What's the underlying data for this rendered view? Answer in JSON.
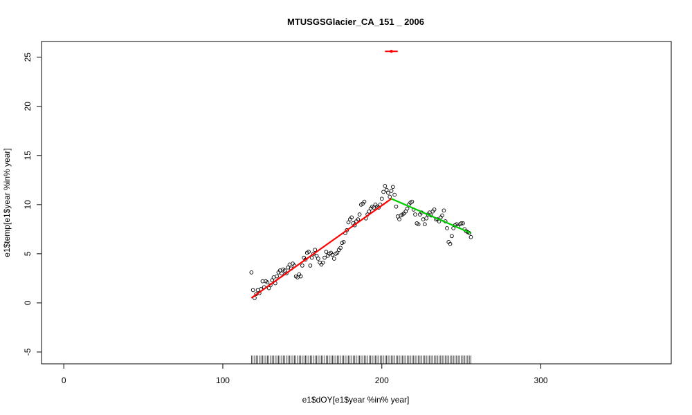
{
  "chart_data": {
    "type": "scatter",
    "title": "MTUSGSGlacier_CA_151 _ 2006",
    "xlabel": "e1$dOY[e1$year %in% year]",
    "ylabel": "e1$temp[e1$year %in% year]",
    "xlim": [
      -14,
      382
    ],
    "ylim": [
      -6.2,
      26.6
    ],
    "x_ticks": [
      0,
      100,
      200,
      300
    ],
    "y_ticks": [
      -5,
      0,
      5,
      10,
      15,
      20,
      25
    ],
    "grid": false,
    "legend": "none",
    "colors": {
      "points": "#000000",
      "fit_before": "#ff0000",
      "fit_after": "#00cc00",
      "marker": "#ff0000"
    },
    "points": {
      "x": [
        118,
        119,
        120,
        121,
        122,
        123,
        124,
        125,
        126,
        127,
        128,
        129,
        130,
        131,
        132,
        133,
        134,
        135,
        136,
        137,
        138,
        139,
        140,
        141,
        142,
        143,
        144,
        145,
        146,
        147,
        148,
        149,
        150,
        151,
        152,
        153,
        154,
        155,
        156,
        157,
        158,
        159,
        160,
        161,
        162,
        163,
        164,
        165,
        166,
        167,
        168,
        169,
        170,
        171,
        172,
        173,
        174,
        175,
        176,
        177,
        178,
        179,
        180,
        181,
        182,
        183,
        184,
        185,
        186,
        187,
        188,
        189,
        190,
        191,
        192,
        193,
        194,
        195,
        196,
        197,
        198,
        199,
        200,
        201,
        202,
        203,
        204,
        205,
        206,
        207,
        208,
        209,
        210,
        211,
        212,
        213,
        214,
        215,
        216,
        217,
        218,
        219,
        220,
        221,
        222,
        223,
        224,
        225,
        226,
        227,
        228,
        229,
        230,
        231,
        232,
        233,
        234,
        235,
        236,
        237,
        238,
        239,
        240,
        241,
        242,
        243,
        244,
        245,
        246,
        247,
        248,
        249,
        250,
        251,
        252,
        253,
        254,
        255,
        256
      ],
      "y": [
        3.1,
        1.3,
        0.5,
        0.9,
        1.3,
        1.0,
        1.4,
        2.2,
        1.6,
        2.2,
        2.1,
        1.5,
        1.8,
        2.3,
        2.6,
        2.0,
        2.7,
        3.1,
        3.3,
        3.0,
        3.4,
        3.3,
        3.0,
        3.6,
        3.9,
        3.5,
        4.0,
        3.8,
        2.7,
        2.6,
        2.9,
        2.7,
        3.8,
        4.6,
        4.4,
        5.1,
        5.2,
        3.8,
        4.6,
        5.0,
        5.4,
        4.8,
        4.5,
        4.1,
        3.9,
        4.1,
        4.6,
        5.2,
        4.8,
        5.0,
        5.1,
        4.9,
        4.5,
        5.0,
        5.1,
        5.4,
        5.6,
        6.1,
        6.2,
        7.1,
        7.4,
        8.2,
        8.5,
        8.7,
        8.1,
        7.9,
        8.3,
        8.5,
        9.0,
        10.0,
        10.1,
        10.3,
        8.6,
        9.0,
        9.3,
        9.6,
        9.8,
        9.7,
        10.0,
        9.8,
        9.7,
        10.0,
        10.6,
        11.3,
        11.9,
        11.5,
        11.2,
        10.8,
        11.4,
        11.8,
        11.0,
        9.8,
        8.8,
        8.5,
        8.9,
        9.0,
        9.1,
        9.3,
        9.6,
        10.0,
        10.2,
        10.3,
        9.5,
        9.0,
        8.1,
        8.0,
        9.0,
        9.2,
        8.5,
        8.0,
        8.6,
        9.0,
        9.2,
        8.9,
        9.3,
        9.5,
        8.5,
        8.5,
        8.3,
        8.7,
        8.9,
        9.4,
        8.3,
        7.6,
        6.2,
        6.0,
        6.8,
        7.6,
        7.9,
        8.0,
        7.8,
        8.0,
        8.1,
        8.1,
        7.5,
        7.3,
        7.2,
        7.1,
        6.7
      ]
    },
    "fit_before": {
      "x": [
        118,
        206
      ],
      "y": [
        0.5,
        10.6
      ]
    },
    "fit_after": {
      "x": [
        206,
        256
      ],
      "y": [
        10.6,
        7.1
      ]
    },
    "breakpoint": {
      "x": 206,
      "y": 25.6,
      "x_err": [
        202,
        210
      ]
    },
    "rug": {
      "from": 118,
      "to": 256,
      "step": 1
    }
  }
}
